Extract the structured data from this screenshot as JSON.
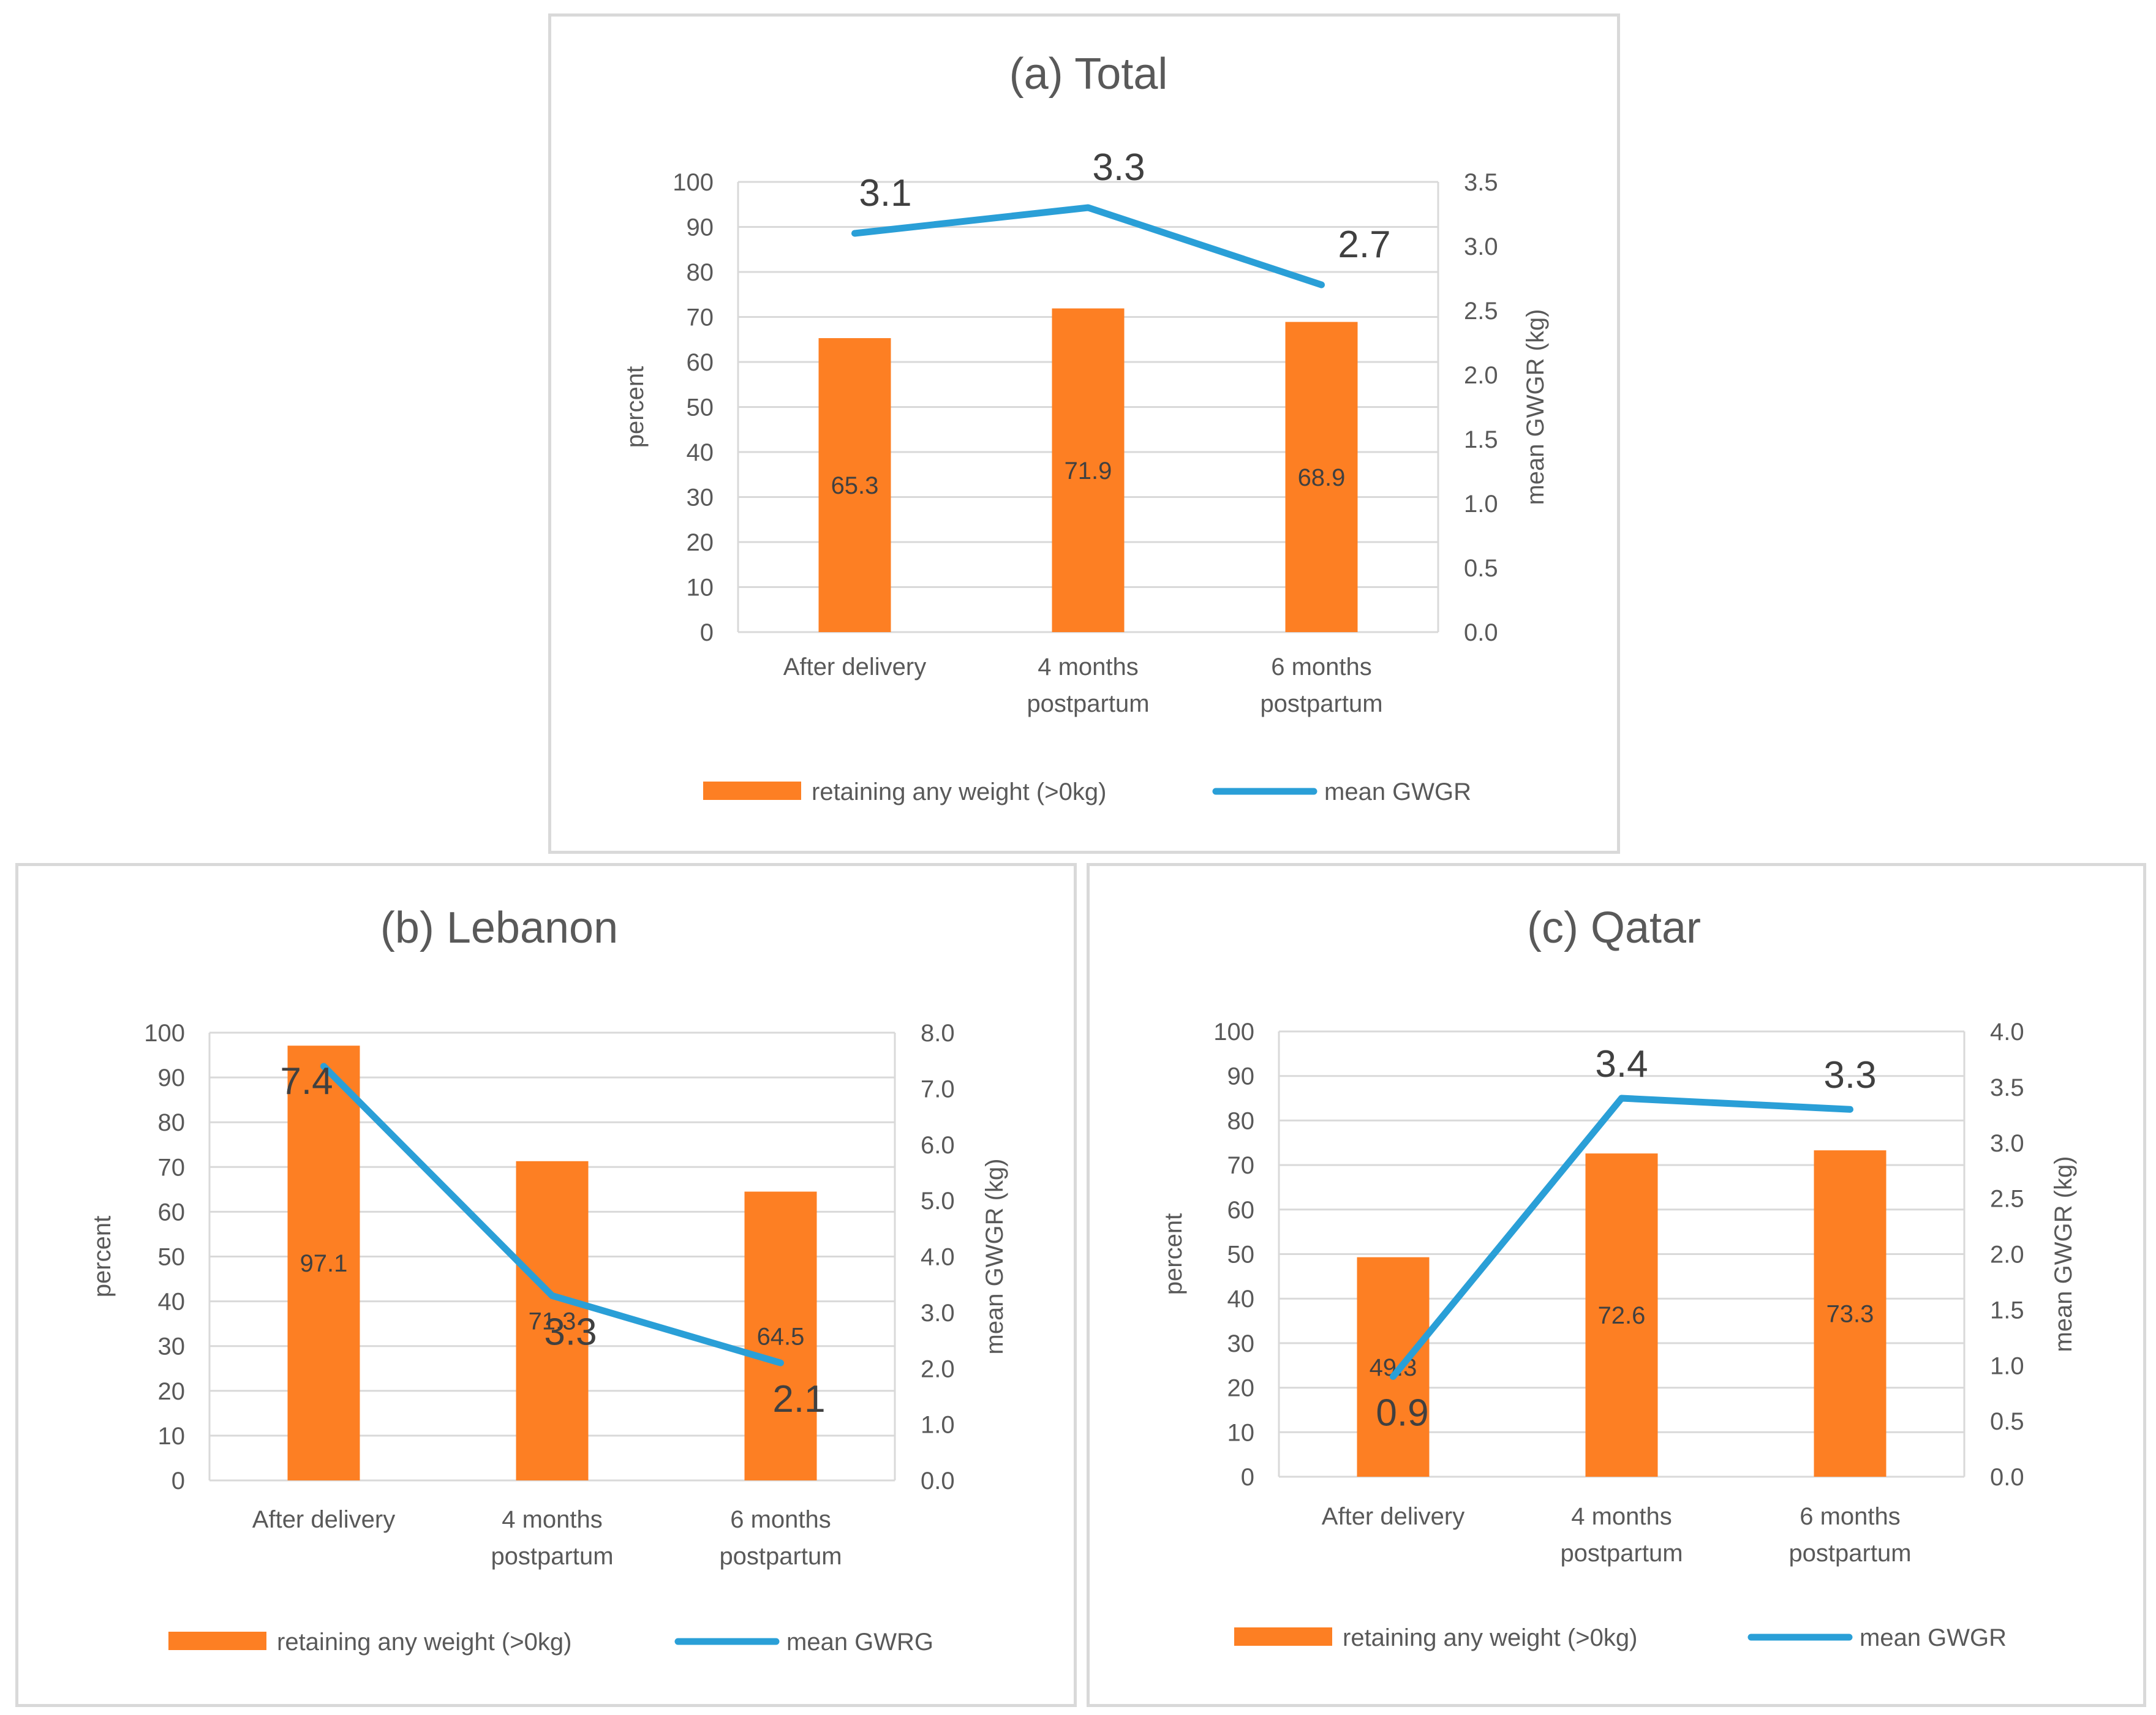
{
  "colors": {
    "bar": "#fd7f23",
    "line": "#2a9fd7",
    "grid": "#d9d9d9",
    "text": "#595959"
  },
  "chart_data": [
    {
      "id": "total",
      "type": "bar",
      "title": "(a) Total",
      "categories": [
        [
          "After delivery"
        ],
        [
          "4 months",
          "postpartum"
        ],
        [
          "6 months",
          "postpartum"
        ]
      ],
      "series": [
        {
          "name": "retaining any weight (>0kg)",
          "type": "bar",
          "axis": "left",
          "values": [
            65.3,
            71.9,
            68.9
          ]
        },
        {
          "name": "mean GWGR",
          "type": "line",
          "axis": "right",
          "values": [
            3.1,
            3.3,
            2.7
          ]
        }
      ],
      "ylabel": "percent",
      "ylim": [
        0,
        100
      ],
      "yticks": [
        0,
        10,
        20,
        30,
        40,
        50,
        60,
        70,
        80,
        90,
        100
      ],
      "y2label": "mean GWGR (kg)",
      "y2lim": [
        0,
        3.5
      ],
      "y2ticks": [
        "0.0",
        "0.5",
        "1.0",
        "1.5",
        "2.0",
        "2.5",
        "3.0",
        "3.5"
      ],
      "bar_labels": [
        "65.3",
        "71.9",
        "68.9"
      ],
      "line_labels": [
        "3.1",
        "3.3",
        "2.7"
      ],
      "legend": [
        "retaining any weight (>0kg)",
        "mean GWGR"
      ],
      "legend_position": "bottom",
      "grid": true
    },
    {
      "id": "lebanon",
      "type": "bar",
      "title": "(b) Lebanon",
      "categories": [
        [
          "After delivery"
        ],
        [
          "4 months",
          "postpartum"
        ],
        [
          "6 months",
          "postpartum"
        ]
      ],
      "series": [
        {
          "name": "retaining any weight (>0kg)",
          "type": "bar",
          "axis": "left",
          "values": [
            97.1,
            71.3,
            64.5
          ]
        },
        {
          "name": "mean GWRG",
          "type": "line",
          "axis": "right",
          "values": [
            7.4,
            3.3,
            2.1
          ]
        }
      ],
      "ylabel": "percent",
      "ylim": [
        0,
        100
      ],
      "yticks": [
        0,
        10,
        20,
        30,
        40,
        50,
        60,
        70,
        80,
        90,
        100
      ],
      "y2label": "mean GWGR (kg)",
      "y2lim": [
        0,
        8
      ],
      "y2ticks": [
        "0.0",
        "1.0",
        "2.0",
        "3.0",
        "4.0",
        "5.0",
        "6.0",
        "7.0",
        "8.0"
      ],
      "bar_labels": [
        "97.1",
        "71.3",
        "64.5"
      ],
      "line_labels": [
        "7.4",
        "3.3",
        "2.1"
      ],
      "legend": [
        "retaining any weight (>0kg)",
        "mean GWRG"
      ],
      "legend_position": "bottom",
      "grid": true
    },
    {
      "id": "qatar",
      "type": "bar",
      "title": "(c) Qatar",
      "categories": [
        [
          "After delivery"
        ],
        [
          "4 months",
          "postpartum"
        ],
        [
          "6 months",
          "postpartum"
        ]
      ],
      "series": [
        {
          "name": "retaining any weight (>0kg)",
          "type": "bar",
          "axis": "left",
          "values": [
            49.3,
            72.6,
            73.3
          ]
        },
        {
          "name": "mean GWGR",
          "type": "line",
          "axis": "right",
          "values": [
            0.9,
            3.4,
            3.3
          ]
        }
      ],
      "ylabel": "percent",
      "ylim": [
        0,
        100
      ],
      "yticks": [
        0,
        10,
        20,
        30,
        40,
        50,
        60,
        70,
        80,
        90,
        100
      ],
      "y2label": "mean GWGR (kg)",
      "y2lim": [
        0,
        4
      ],
      "y2ticks": [
        "0.0",
        "0.5",
        "1.0",
        "1.5",
        "2.0",
        "2.5",
        "3.0",
        "3.5",
        "4.0"
      ],
      "bar_labels": [
        "49.3",
        "72.6",
        "73.3"
      ],
      "line_labels": [
        "0.9",
        "3.4",
        "3.3"
      ],
      "legend": [
        "retaining any weight (>0kg)",
        "mean GWGR"
      ],
      "legend_position": "bottom",
      "grid": true
    }
  ]
}
